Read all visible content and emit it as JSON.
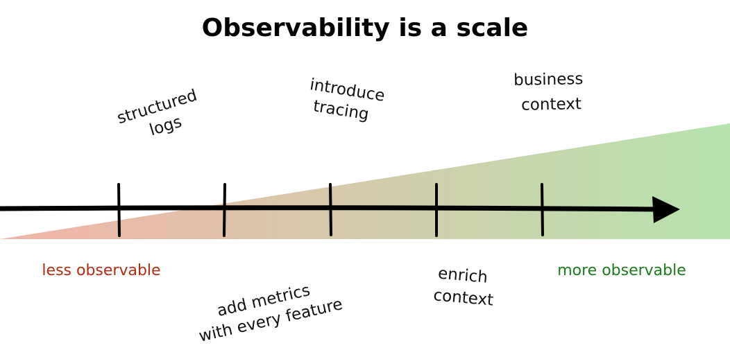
{
  "title": "Observability is a scale",
  "colors": {
    "less": "#b22c14",
    "more": "#1e7a1e",
    "gradient_start": "#f2b3a6",
    "gradient_end": "#b5e3ad",
    "axis": "#000000"
  },
  "end_labels": {
    "less": "less observable",
    "more": "more observable"
  },
  "milestones": [
    {
      "lines": [
        "structured",
        "logs"
      ]
    },
    {
      "lines": [
        "add metrics",
        "with every feature"
      ]
    },
    {
      "lines": [
        "introduce",
        "tracing"
      ]
    },
    {
      "lines": [
        "enrich",
        "context"
      ]
    },
    {
      "lines": [
        "business",
        "context"
      ]
    }
  ]
}
